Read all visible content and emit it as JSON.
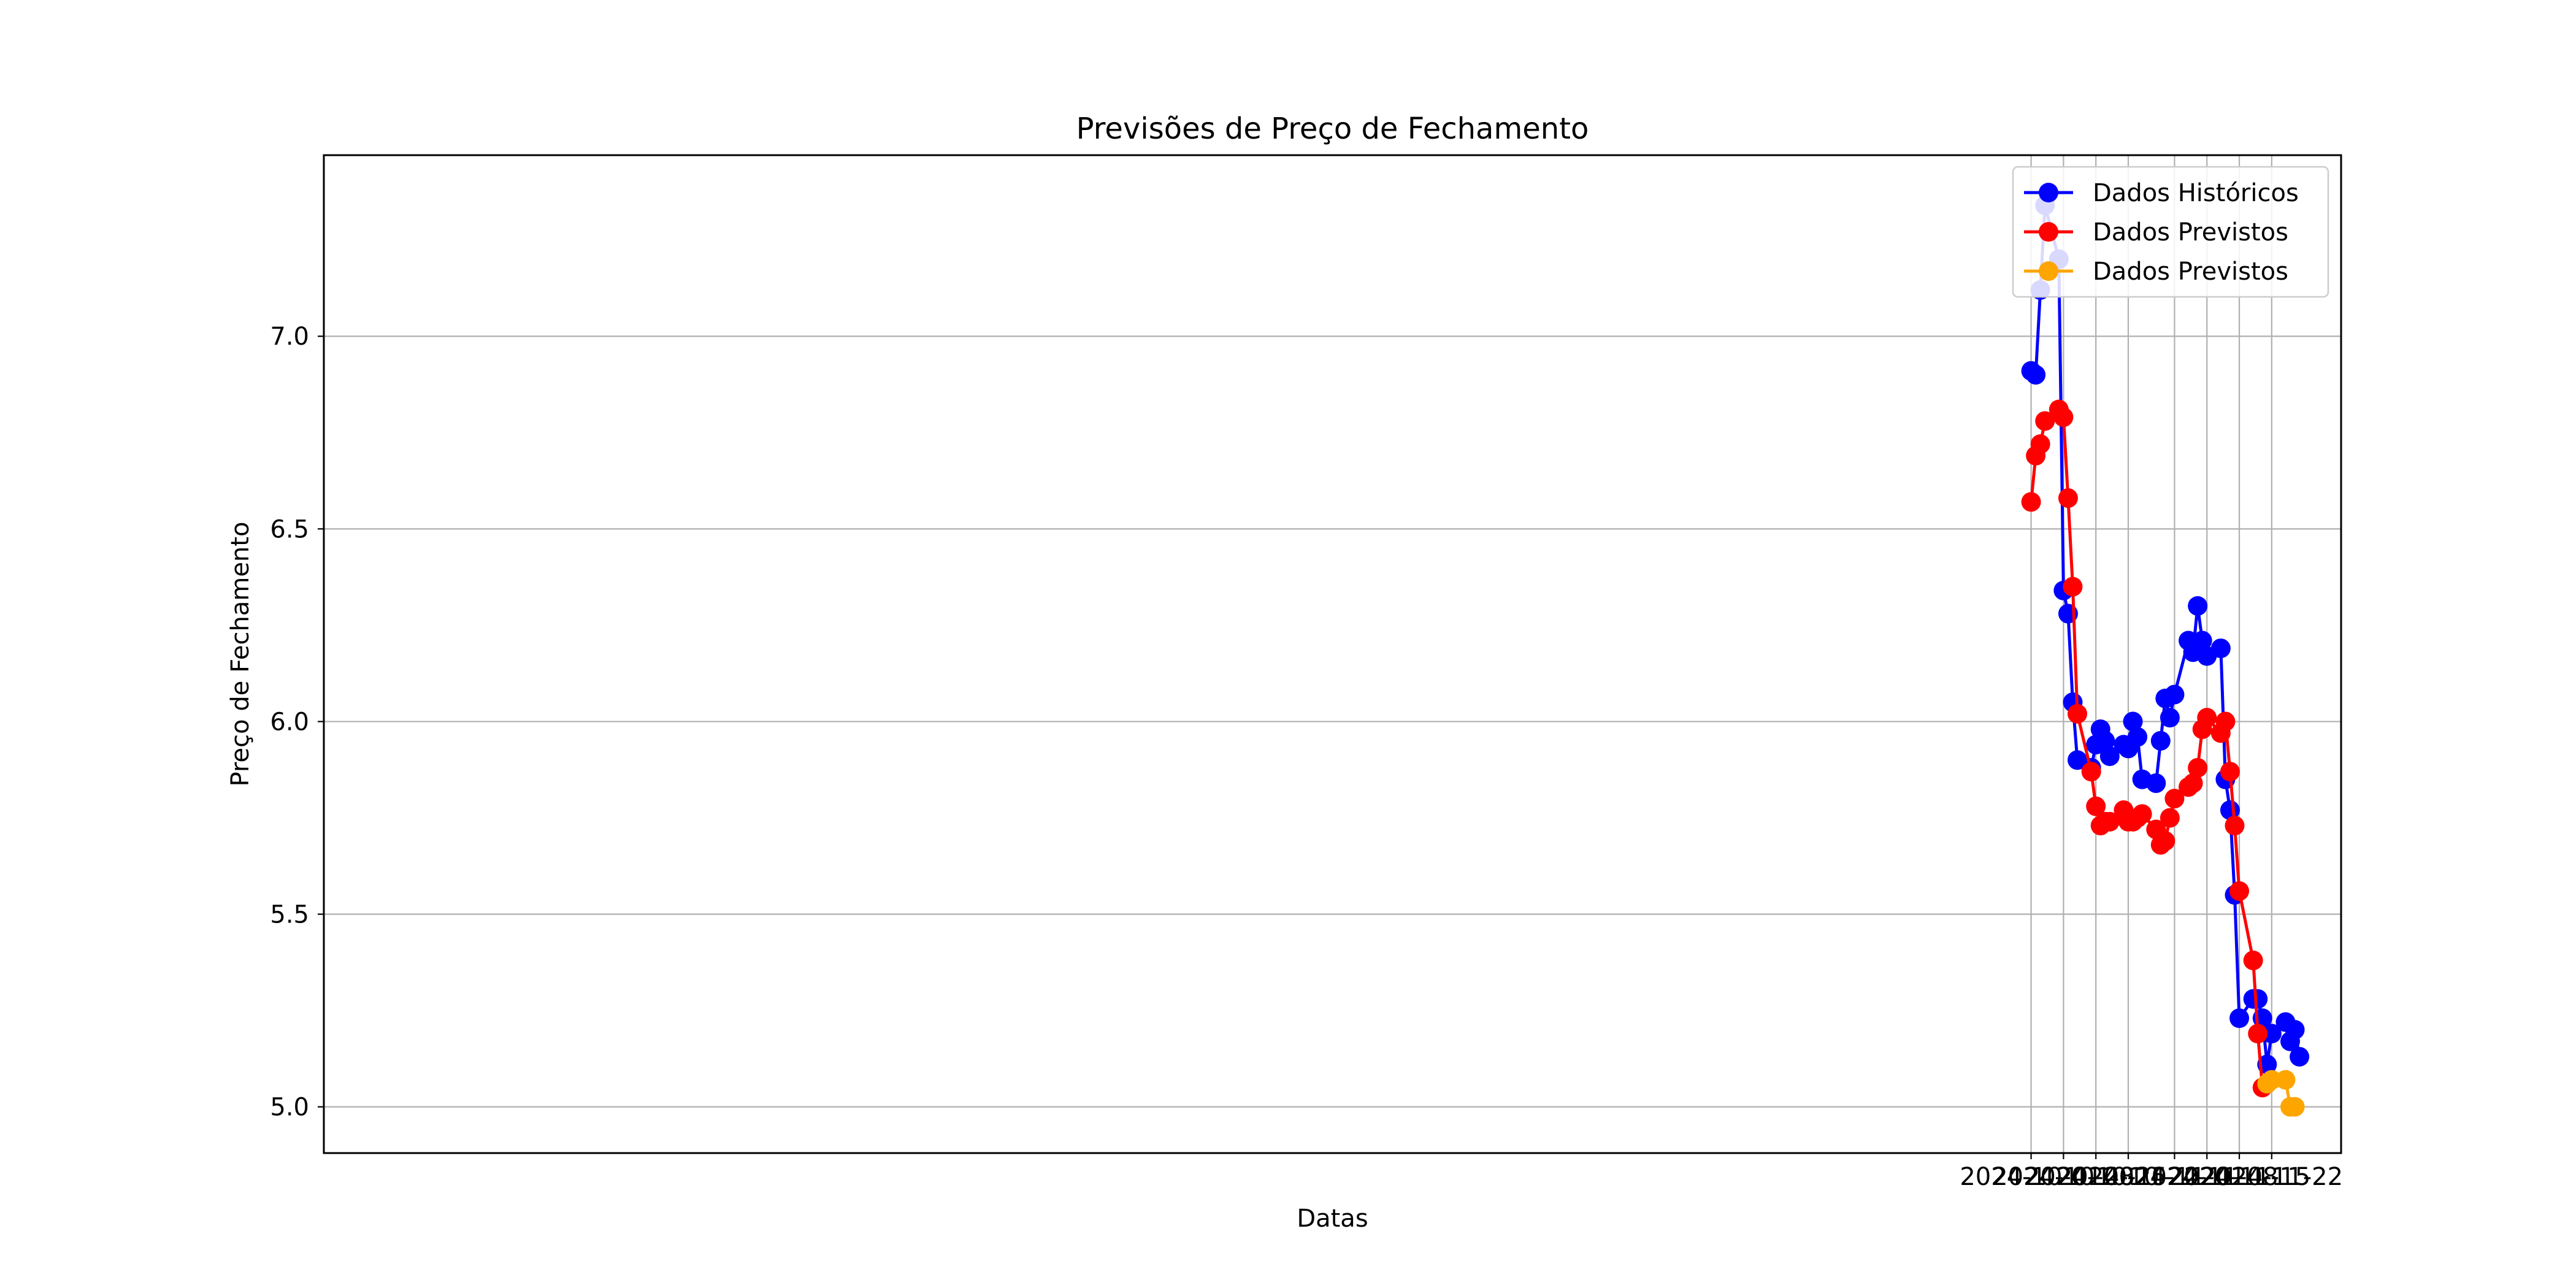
{
  "chart_data": {
    "type": "line",
    "title": "Previsões de Preço de Fechamento",
    "xlabel": "Datas",
    "ylabel": "Preço de Fechamento",
    "x_axis": "date",
    "xlim": [
      "2023-09-28",
      "2024-12-07"
    ],
    "ylim": [
      4.88,
      7.47
    ],
    "x_ticks": [
      "2024-10-01",
      "2024-10-08",
      "2024-10-15",
      "2024-10-22",
      "2024-11-01",
      "2024-11-08",
      "2024-11-15",
      "2024-11-22"
    ],
    "y_ticks": [
      5.0,
      5.5,
      6.0,
      6.5,
      7.0
    ],
    "y_tick_labels": [
      "5.0",
      "5.5",
      "6.0",
      "6.5",
      "7.0"
    ],
    "grid": true,
    "legend_position": "top-right",
    "series": [
      {
        "name": "Dados Históricos",
        "color": "#0000ff",
        "marker": "circle",
        "points": [
          [
            "2024-10-01",
            6.91
          ],
          [
            "2024-10-02",
            6.9
          ],
          [
            "2024-10-03",
            7.12
          ],
          [
            "2024-10-04",
            7.34
          ],
          [
            "2024-10-07",
            7.2
          ],
          [
            "2024-10-08",
            6.34
          ],
          [
            "2024-10-09",
            6.28
          ],
          [
            "2024-10-10",
            6.05
          ],
          [
            "2024-10-11",
            5.9
          ],
          [
            "2024-10-14",
            5.88
          ],
          [
            "2024-10-15",
            5.94
          ],
          [
            "2024-10-16",
            5.98
          ],
          [
            "2024-10-17",
            5.95
          ],
          [
            "2024-10-18",
            5.91
          ],
          [
            "2024-10-21",
            5.94
          ],
          [
            "2024-10-22",
            5.93
          ],
          [
            "2024-10-23",
            6.0
          ],
          [
            "2024-10-24",
            5.96
          ],
          [
            "2024-10-25",
            5.85
          ],
          [
            "2024-10-28",
            5.84
          ],
          [
            "2024-10-29",
            5.95
          ],
          [
            "2024-10-30",
            6.06
          ],
          [
            "2024-10-31",
            6.01
          ],
          [
            "2024-11-01",
            6.07
          ],
          [
            "2024-11-04",
            6.21
          ],
          [
            "2024-11-05",
            6.18
          ],
          [
            "2024-11-06",
            6.3
          ],
          [
            "2024-11-07",
            6.21
          ],
          [
            "2024-11-08",
            6.17
          ],
          [
            "2024-11-11",
            6.19
          ],
          [
            "2024-11-12",
            5.85
          ],
          [
            "2024-11-13",
            5.77
          ],
          [
            "2024-11-14",
            5.55
          ],
          [
            "2024-11-15",
            5.23
          ],
          [
            "2024-11-18",
            5.28
          ],
          [
            "2024-11-19",
            5.28
          ],
          [
            "2024-11-20",
            5.23
          ],
          [
            "2024-11-21",
            5.11
          ],
          [
            "2024-11-22",
            5.19
          ],
          [
            "2024-11-25",
            5.22
          ],
          [
            "2024-11-26",
            5.17
          ],
          [
            "2024-11-27",
            5.2
          ],
          [
            "2024-11-28",
            5.13
          ]
        ]
      },
      {
        "name": "Dados Previstos",
        "color": "#ff0000",
        "marker": "circle",
        "points": [
          [
            "2024-10-01",
            6.57
          ],
          [
            "2024-10-02",
            6.69
          ],
          [
            "2024-10-03",
            6.72
          ],
          [
            "2024-10-04",
            6.78
          ],
          [
            "2024-10-07",
            6.81
          ],
          [
            "2024-10-08",
            6.79
          ],
          [
            "2024-10-09",
            6.58
          ],
          [
            "2024-10-10",
            6.35
          ],
          [
            "2024-10-11",
            6.02
          ],
          [
            "2024-10-14",
            5.87
          ],
          [
            "2024-10-15",
            5.78
          ],
          [
            "2024-10-16",
            5.73
          ],
          [
            "2024-10-17",
            5.74
          ],
          [
            "2024-10-18",
            5.74
          ],
          [
            "2024-10-21",
            5.77
          ],
          [
            "2024-10-22",
            5.74
          ],
          [
            "2024-10-23",
            5.74
          ],
          [
            "2024-10-24",
            5.75
          ],
          [
            "2024-10-25",
            5.76
          ],
          [
            "2024-10-28",
            5.72
          ],
          [
            "2024-10-29",
            5.68
          ],
          [
            "2024-10-30",
            5.69
          ],
          [
            "2024-10-31",
            5.75
          ],
          [
            "2024-11-01",
            5.8
          ],
          [
            "2024-11-04",
            5.83
          ],
          [
            "2024-11-05",
            5.84
          ],
          [
            "2024-11-06",
            5.88
          ],
          [
            "2024-11-07",
            5.98
          ],
          [
            "2024-11-08",
            6.01
          ],
          [
            "2024-11-11",
            5.97
          ],
          [
            "2024-11-12",
            6.0
          ],
          [
            "2024-11-13",
            5.87
          ],
          [
            "2024-11-14",
            5.73
          ],
          [
            "2024-11-15",
            5.56
          ],
          [
            "2024-11-18",
            5.38
          ],
          [
            "2024-11-19",
            5.19
          ],
          [
            "2024-11-20",
            5.05
          ]
        ]
      },
      {
        "name": "Dados Previstos",
        "color": "#ffa500",
        "marker": "circle",
        "points": [
          [
            "2024-11-21",
            5.06
          ],
          [
            "2024-11-22",
            5.07
          ],
          [
            "2024-11-25",
            5.07
          ],
          [
            "2024-11-26",
            5.0
          ],
          [
            "2024-11-27",
            5.0
          ]
        ]
      }
    ]
  }
}
